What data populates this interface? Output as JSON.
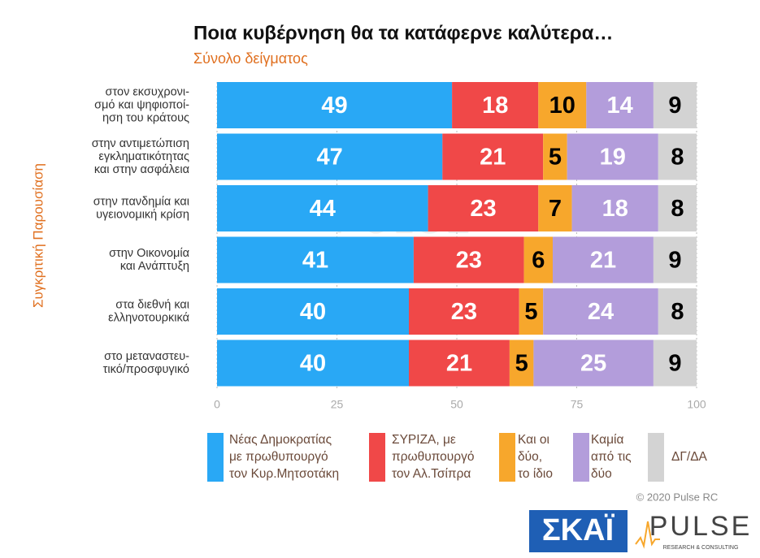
{
  "chart_data": {
    "type": "stacked_bar_horizontal",
    "title": "Ποια κυβέρνηση θα τα κατάφερνε καλύτερα…",
    "subtitle": "Σύνολο δείγματος",
    "y_axis_label": "Συγκριτική Παρουσίαση",
    "categories": [
      "στον εκσυχρονι-\nσμό και ψηφιοποί-\nηση του κράτους",
      "στην αντιμετώπιση\nεγκληματικότητας\nκαι στην ασφάλεια",
      "στην πανδημία και\nυγειονομική κρίση",
      "στην Οικονομία\nκαι Ανάπτυξη",
      "στα διεθνή και\nελληνοτουρκικά",
      "στο μεταναστευ-\nτικό/προσφυγικό"
    ],
    "series": [
      {
        "name": "Νέας Δημοκρατίας\nμε πρωθυπουργό\nτον Κυρ.Μητσοτάκη",
        "color": "#29a8f5",
        "label_color": "#ffffff",
        "values": [
          49,
          47,
          44,
          41,
          40,
          40
        ]
      },
      {
        "name": "ΣΥΡΙΖΑ, με\nπρωθυπουργό\nτον Αλ.Τσίπρα",
        "color": "#f04848",
        "label_color": "#ffffff",
        "values": [
          18,
          21,
          23,
          23,
          23,
          21
        ]
      },
      {
        "name": "Και οι\nδύο,\nτο ίδιο",
        "color": "#f7a72c",
        "label_color": "#000000",
        "values": [
          10,
          5,
          7,
          6,
          5,
          5
        ]
      },
      {
        "name": "Καμία\nαπό τις\nδύο",
        "color": "#b39ddb",
        "label_color": "#ffffff",
        "values": [
          14,
          19,
          18,
          21,
          24,
          25
        ]
      },
      {
        "name": "ΔΓ/ΔΑ",
        "color": "#d3d3d3",
        "label_color": "#000000",
        "values": [
          9,
          8,
          8,
          9,
          8,
          9
        ]
      }
    ],
    "xlim": [
      0,
      100
    ],
    "xticks": [
      0,
      25,
      50,
      75,
      100
    ],
    "grid": true,
    "copyright": "© 2020 Pulse RC",
    "logos": {
      "skai": "ΣΚΑΪ",
      "pulse": "PULSE",
      "pulse_tagline": "RESEARCH & CONSULTING"
    }
  }
}
